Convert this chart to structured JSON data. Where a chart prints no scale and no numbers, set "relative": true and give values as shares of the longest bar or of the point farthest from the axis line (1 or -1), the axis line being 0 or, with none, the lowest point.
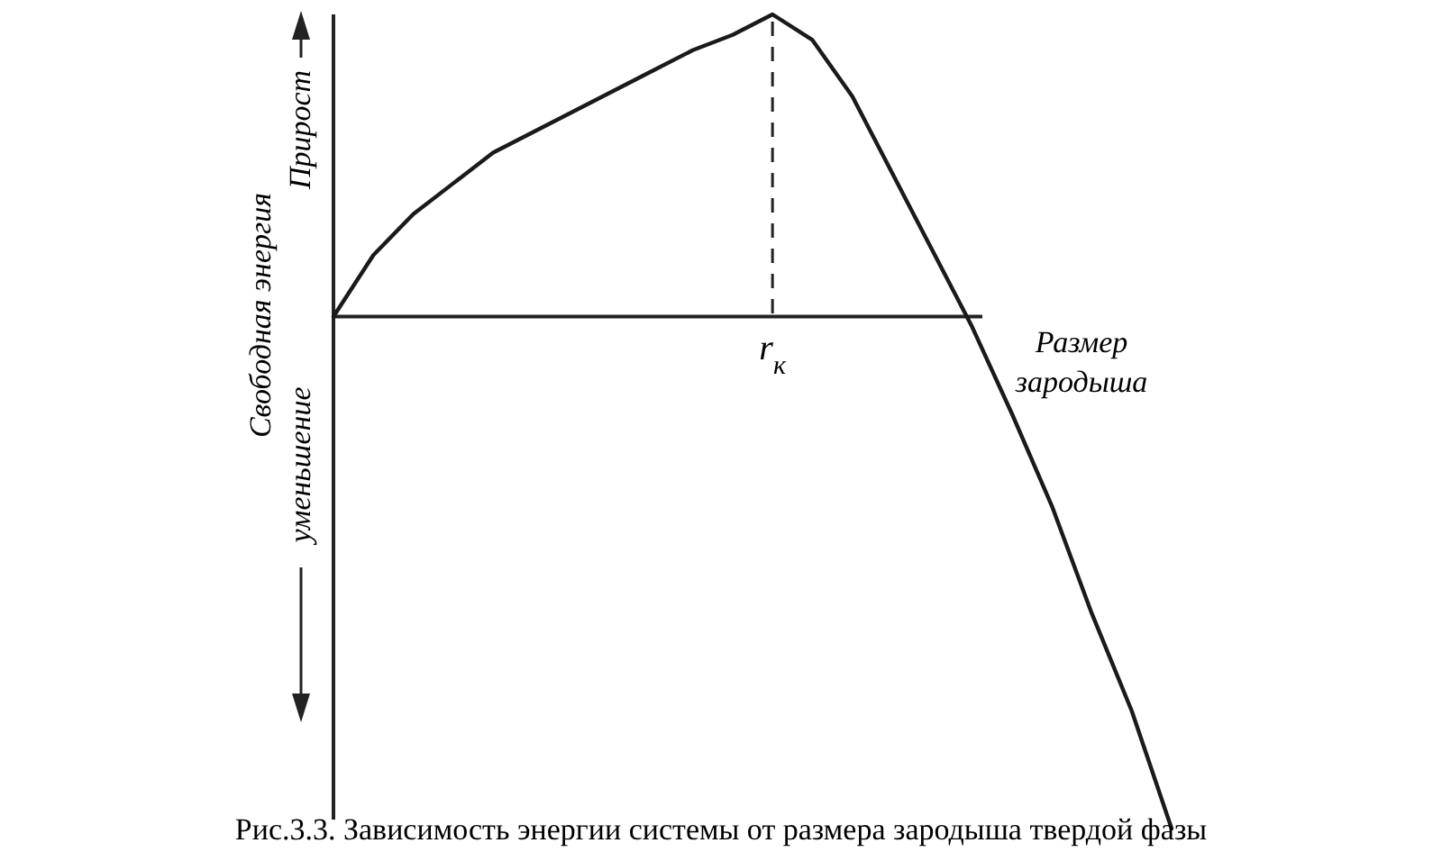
{
  "chart_data": {
    "type": "line",
    "relative": true,
    "line_style": "solid",
    "xlabel": "Размер зародыша",
    "ylabel": "Свободная энергия",
    "categories": [
      null,
      null,
      null,
      null,
      null,
      null,
      null,
      null,
      null,
      null,
      null,
      null,
      null,
      null,
      null,
      null,
      null,
      null,
      null,
      null,
      null,
      null
    ],
    "series": [
      {
        "color": "#1a1a1a",
        "values": [
          0,
          0.12,
          0.2,
          0.26,
          0.32,
          0.36,
          0.4,
          0.44,
          0.48,
          0.52,
          0.55,
          0.59,
          0.54,
          0.43,
          0.28,
          0.13,
          -0.02,
          -0.19,
          -0.37,
          -0.58,
          -0.77,
          -1
        ]
      }
    ],
    "annotations": [
      {
        "text": "r$_{к}$"
      },
      "Прирост",
      "уменьшение",
      "Рис.3.3. Зависимость энергии системы от размера зародыша твердой фазы"
    ]
  }
}
